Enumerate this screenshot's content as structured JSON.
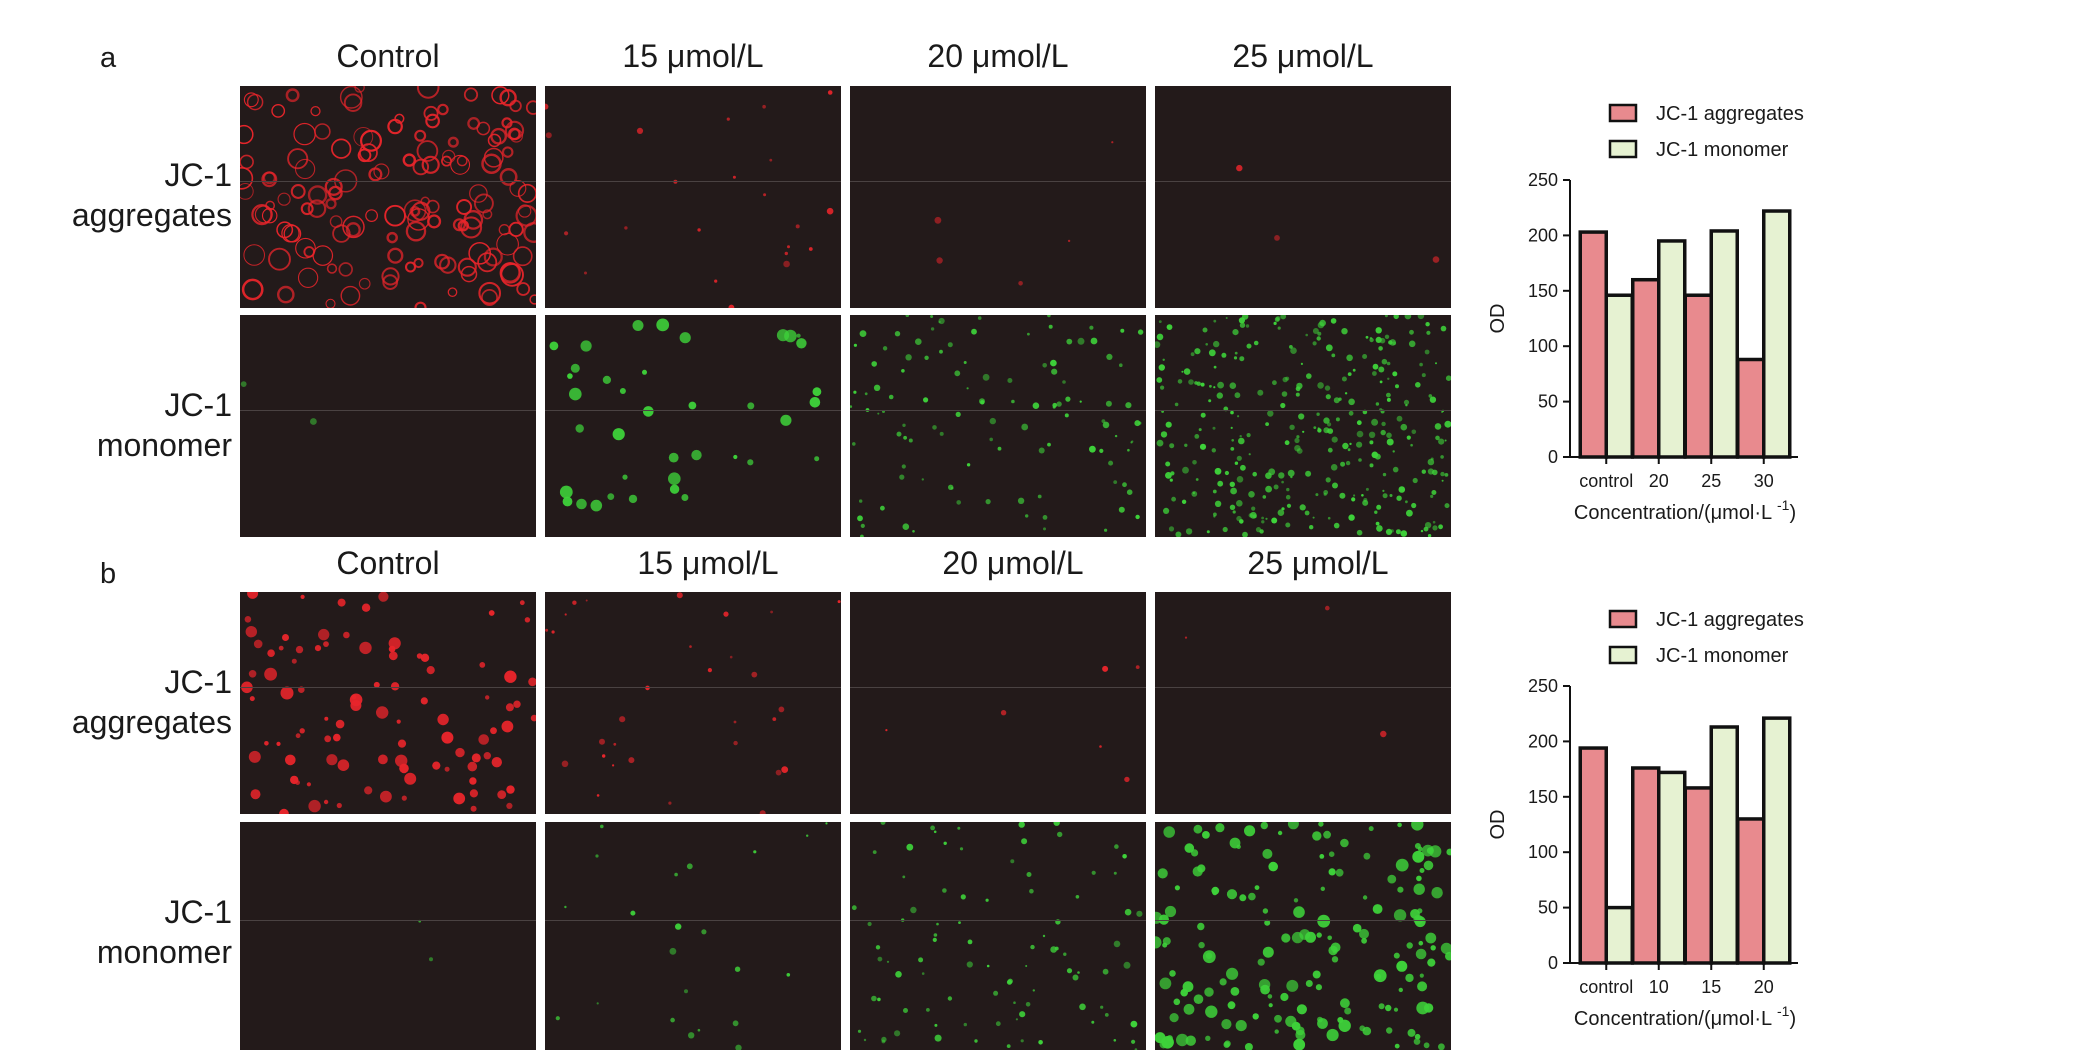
{
  "figure": {
    "panels": [
      {
        "letter": "a",
        "columns": [
          "Control",
          "15 μmol/L",
          "20 μmol/L",
          "25 μmol/L"
        ],
        "rows": [
          {
            "label_line1": "JC-1",
            "label_line2": "aggregates",
            "stain": "red"
          },
          {
            "label_line1": "JC-1",
            "label_line2": "monomer",
            "stain": "green"
          }
        ]
      },
      {
        "letter": "b",
        "columns": [
          "Control",
          "15 μmol/L",
          "20 μmol/L",
          "25 μmol/L"
        ],
        "rows": [
          {
            "label_line1": "JC-1",
            "label_line2": "aggregates",
            "stain": "red"
          },
          {
            "label_line1": "JC-1",
            "label_line2": "monomer",
            "stain": "green"
          }
        ]
      }
    ]
  },
  "colors": {
    "tile_bg": "#231a1a",
    "red_stain": "#e8252b",
    "green_stain": "#3ed23a",
    "aggregates_bar": "#e88a8e",
    "monomer_bar": "#e6f2d2",
    "bar_edge": "#111111"
  },
  "chart_data": [
    {
      "type": "bar",
      "categories": [
        "control",
        "20",
        "25",
        "30"
      ],
      "series": [
        {
          "name": "JC-1 aggregates",
          "values": [
            203,
            160,
            146,
            88
          ]
        },
        {
          "name": "JC-1 monomer",
          "values": [
            146,
            195,
            204,
            222
          ]
        }
      ],
      "xlabel": "Concentration/(μmol·L",
      "xlabel_sup": "-1",
      "xlabel_close": ")",
      "ylabel": "OD",
      "ylim": [
        0,
        250
      ],
      "yticks": [
        "0",
        "50",
        "100",
        "150",
        "200",
        "250"
      ],
      "legend_position": "top"
    },
    {
      "type": "bar",
      "categories": [
        "control",
        "10",
        "15",
        "20"
      ],
      "series": [
        {
          "name": "JC-1 aggregates",
          "values": [
            194,
            176,
            158,
            130
          ]
        },
        {
          "name": "JC-1 monomer",
          "values": [
            50,
            172,
            213,
            221
          ]
        }
      ],
      "xlabel": "Concentration/(μmol·L",
      "xlabel_sup": "-1",
      "xlabel_close": ")",
      "ylabel": "OD",
      "ylim": [
        0,
        250
      ],
      "yticks": [
        "0",
        "50",
        "100",
        "150",
        "200",
        "250"
      ],
      "legend_position": "top"
    }
  ]
}
